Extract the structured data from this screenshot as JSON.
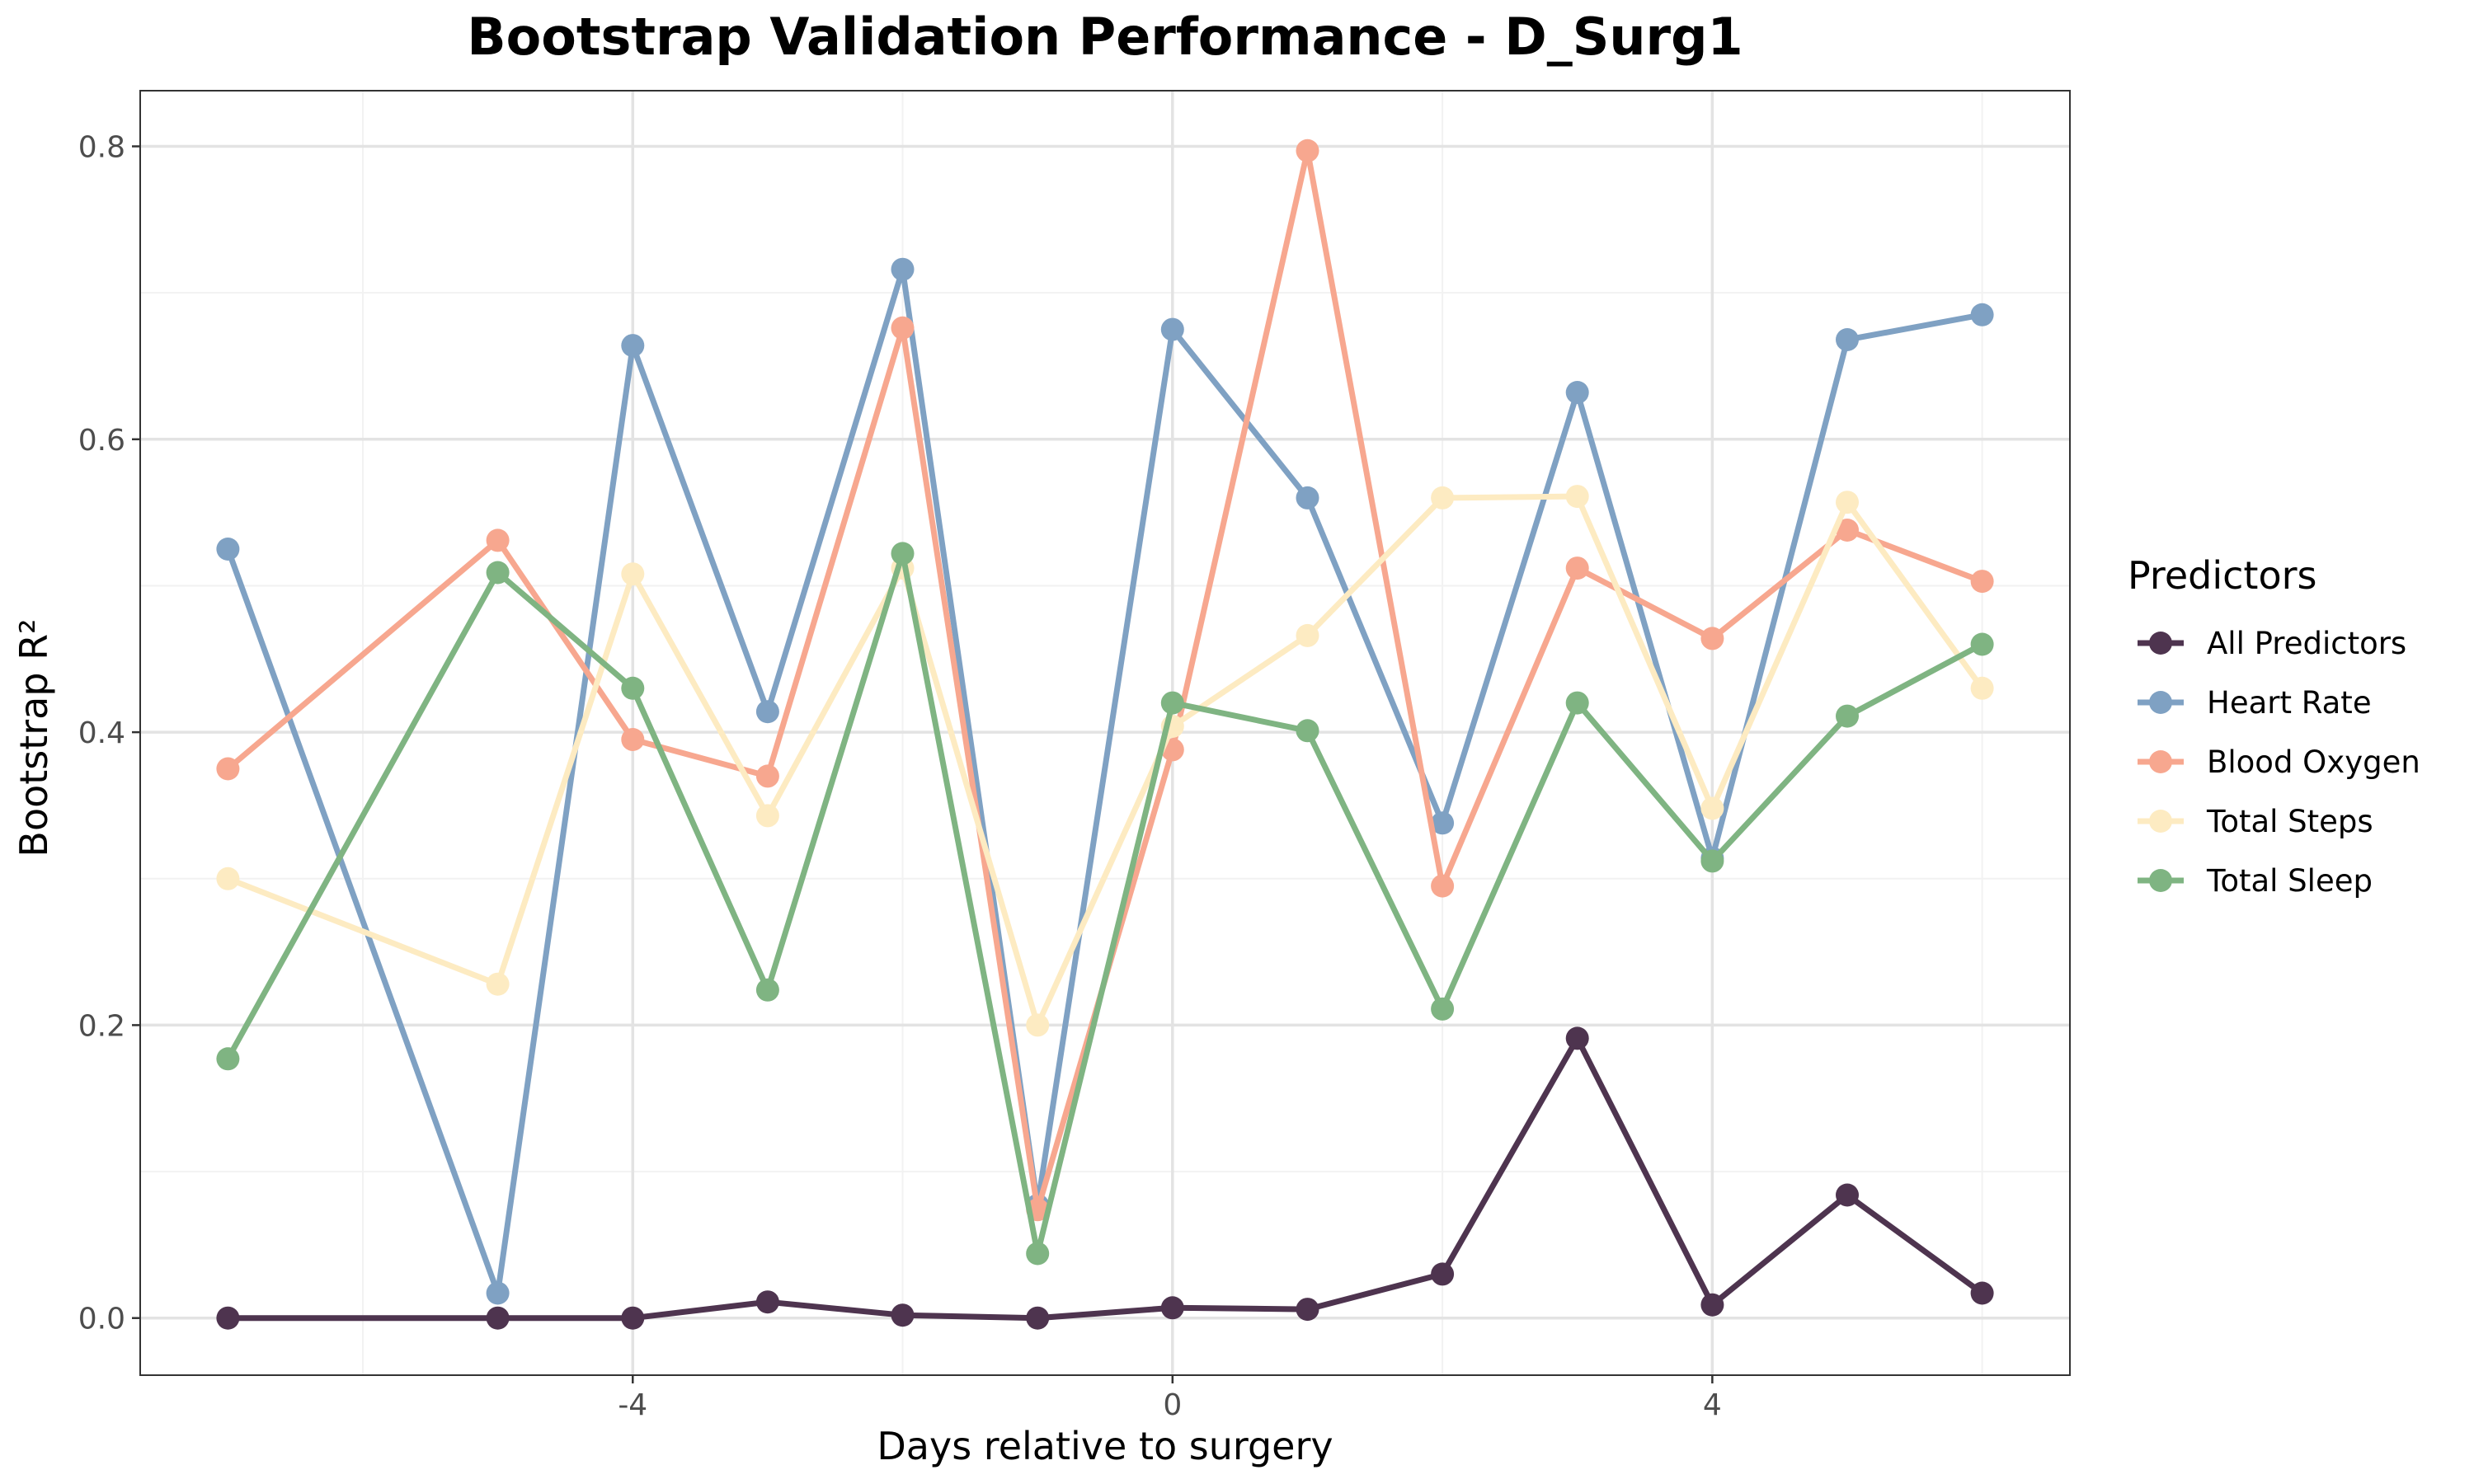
{
  "chart_data": {
    "type": "line",
    "title": "Bootstrap Validation Performance - D_Surg1",
    "xlabel": "Days relative to surgery",
    "ylabel": "Bootstrap R²",
    "x": [
      -7,
      -5,
      -4,
      -3,
      -2,
      -1,
      0,
      1,
      2,
      3,
      4,
      5,
      6
    ],
    "xlim": [
      -7.65,
      6.65
    ],
    "ylim": [
      -0.039,
      0.838
    ],
    "x_ticks": [
      -4,
      0,
      4
    ],
    "x_tick_labels": [
      "-4",
      "0",
      "4"
    ],
    "x_minor_ticks": [
      -6,
      -2,
      2,
      6
    ],
    "y_ticks": [
      0.0,
      0.2,
      0.4,
      0.6,
      0.8
    ],
    "y_tick_labels": [
      "0.0",
      "0.2",
      "0.4",
      "0.6",
      "0.8"
    ],
    "y_minor_ticks": [
      0.1,
      0.3,
      0.5,
      0.7
    ],
    "grid": true,
    "legend": {
      "title": "Predictors",
      "position": "right"
    },
    "series": [
      {
        "name": "Heart Rate",
        "color": "#7FA1C3",
        "values": [
          0.525,
          0.017,
          0.664,
          0.414,
          0.716,
          0.077,
          0.675,
          0.56,
          0.338,
          0.632,
          0.314,
          0.668,
          0.685
        ]
      },
      {
        "name": "Blood Oxygen",
        "color": "#F7A78F",
        "values": [
          0.375,
          0.531,
          0.395,
          0.37,
          0.676,
          0.074,
          0.388,
          0.797,
          0.295,
          0.512,
          0.464,
          0.538,
          0.503
        ]
      },
      {
        "name": "Total Steps",
        "color": "#FDEBC2",
        "values": [
          0.3,
          0.228,
          0.508,
          0.343,
          0.512,
          0.2,
          0.404,
          0.466,
          0.56,
          0.561,
          0.348,
          0.557,
          0.43
        ]
      },
      {
        "name": "Total Sleep",
        "color": "#7FB482",
        "values": [
          0.177,
          0.509,
          0.43,
          0.224,
          0.522,
          0.044,
          0.42,
          0.401,
          0.211,
          0.42,
          0.312,
          0.411,
          0.46
        ]
      },
      {
        "name": "All Predictors",
        "color": "#4E344F",
        "values": [
          0.0,
          0.0,
          0.0,
          0.011,
          0.002,
          0.0,
          0.007,
          0.006,
          0.03,
          0.191,
          0.009,
          0.084,
          0.017
        ]
      }
    ],
    "legend_order": [
      "All Predictors",
      "Heart Rate",
      "Blood Oxygen",
      "Total Steps",
      "Total Sleep"
    ]
  }
}
